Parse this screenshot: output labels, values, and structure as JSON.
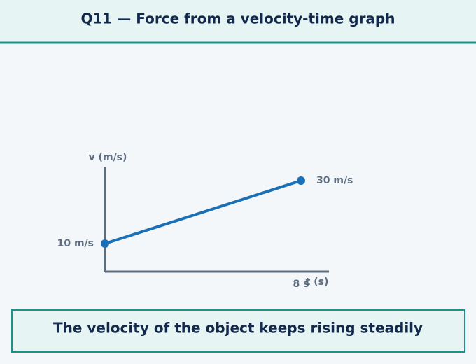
{
  "header": {
    "title": "Q11 — Force from a velocity-time graph"
  },
  "graph": {
    "y_axis_label": "v (m/s)",
    "x_axis_label": "t (s)",
    "start_label": "10 m/s",
    "end_label": "30 m/s",
    "time_label": "8 s"
  },
  "caption": "The velocity of the object keeps rising steadily"
}
